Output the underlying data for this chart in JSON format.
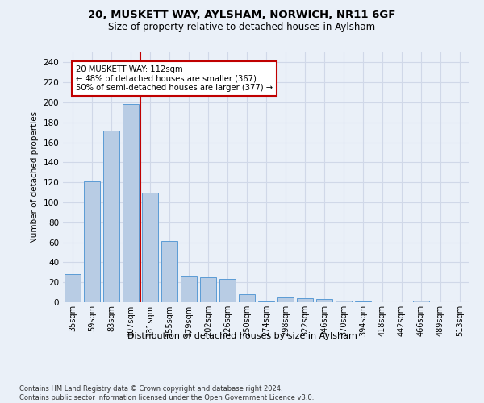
{
  "title": "20, MUSKETT WAY, AYLSHAM, NORWICH, NR11 6GF",
  "subtitle": "Size of property relative to detached houses in Aylsham",
  "xlabel": "Distribution of detached houses by size in Aylsham",
  "ylabel": "Number of detached properties",
  "categories": [
    "35sqm",
    "59sqm",
    "83sqm",
    "107sqm",
    "131sqm",
    "155sqm",
    "179sqm",
    "202sqm",
    "226sqm",
    "250sqm",
    "274sqm",
    "298sqm",
    "322sqm",
    "346sqm",
    "370sqm",
    "394sqm",
    "418sqm",
    "442sqm",
    "466sqm",
    "489sqm",
    "513sqm"
  ],
  "values": [
    28,
    121,
    172,
    198,
    110,
    61,
    26,
    25,
    23,
    8,
    1,
    5,
    4,
    3,
    2,
    1,
    0,
    0,
    2,
    0,
    0
  ],
  "bar_color": "#b8cce4",
  "bar_edge_color": "#5b9bd5",
  "vline_x": 3.5,
  "vline_color": "#c00000",
  "annotation_text": "20 MUSKETT WAY: 112sqm\n← 48% of detached houses are smaller (367)\n50% of semi-detached houses are larger (377) →",
  "annotation_box_color": "#ffffff",
  "annotation_box_edge": "#c00000",
  "ylim": [
    0,
    250
  ],
  "yticks": [
    0,
    20,
    40,
    60,
    80,
    100,
    120,
    140,
    160,
    180,
    200,
    220,
    240
  ],
  "grid_color": "#d0d8e8",
  "footnote": "Contains HM Land Registry data © Crown copyright and database right 2024.\nContains public sector information licensed under the Open Government Licence v3.0.",
  "background_color": "#eaf0f8",
  "plot_background": "#eaf0f8"
}
